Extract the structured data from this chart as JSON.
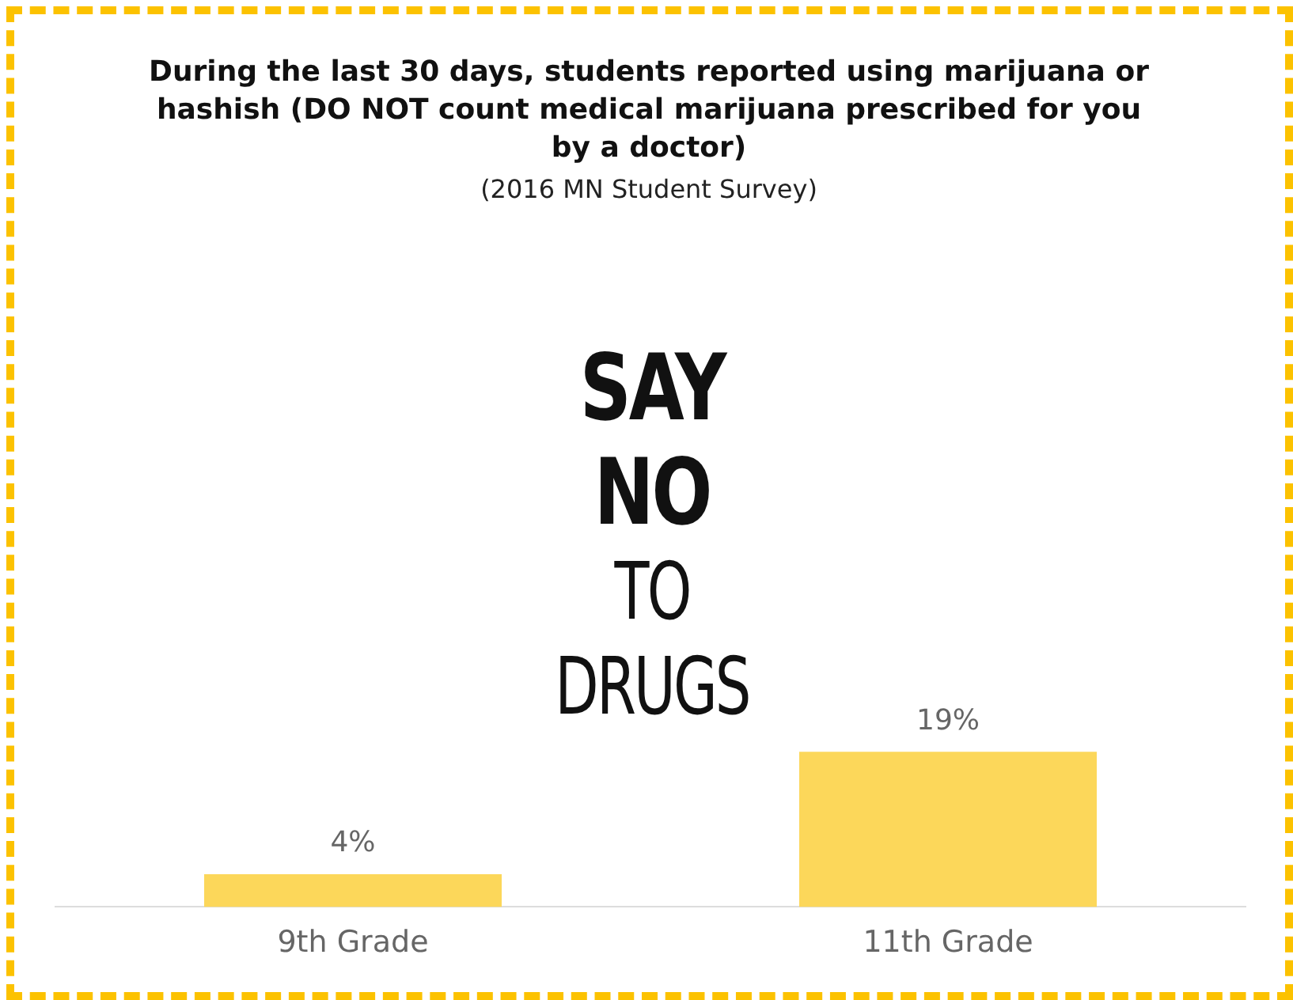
{
  "chart_data": {
    "type": "bar",
    "title": "During the last 30 days, students reported using marijuana or hashish (DO NOT count medical marijuana prescribed for you by a doctor)",
    "subtitle": "(2016 MN Student Survey)",
    "categories": [
      "9th Grade",
      "11th Grade"
    ],
    "values": [
      4,
      19
    ],
    "value_labels": [
      "4%",
      "19%"
    ],
    "color": "#fcd75a",
    "annotations": [
      "SAY NO",
      "TO DRUGS"
    ],
    "grid": false,
    "legend": false
  }
}
